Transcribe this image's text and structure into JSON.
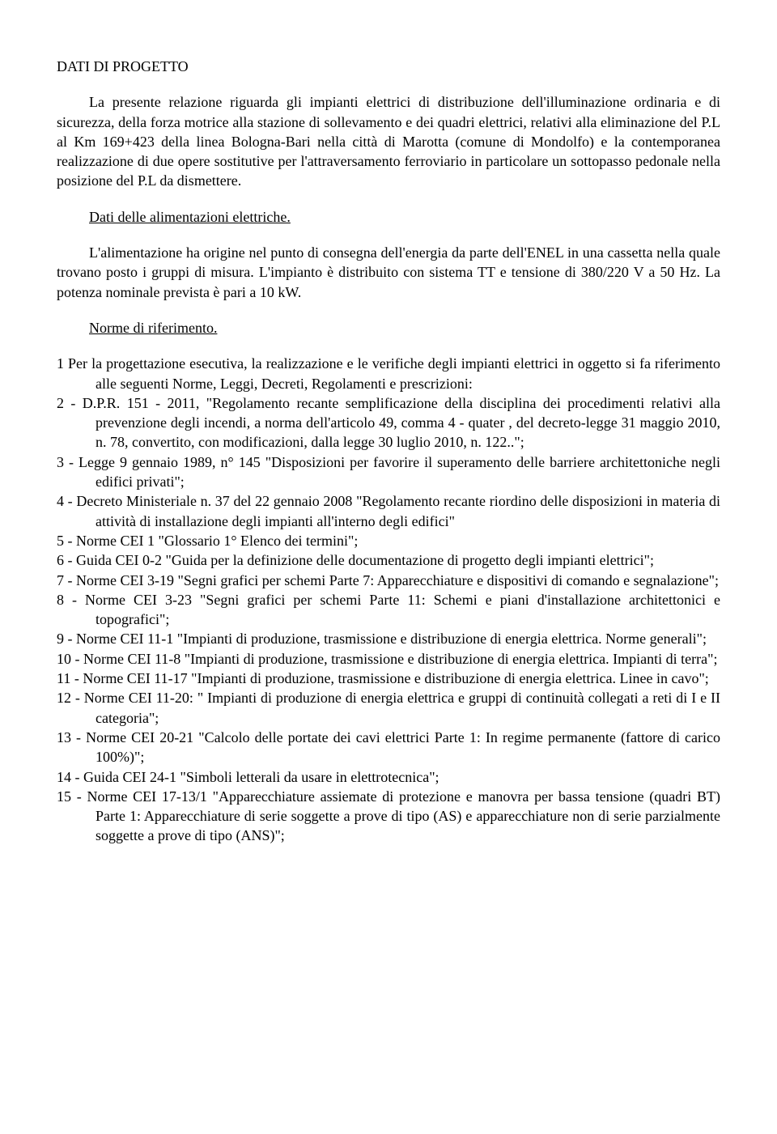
{
  "title": "DATI  DI  PROGETTO",
  "para1": "La presente relazione riguarda gli impianti elettrici di distribuzione dell'illuminazione ordinaria e di sicurezza, della forza motrice alla stazione di sollevamento e dei quadri elettrici, relativi alla eliminazione del P.L al Km 169+423 della linea Bologna-Bari nella città di Marotta (comune di Mondolfo) e la contemporanea realizzazione di due opere sostitutive per l'attraversamento ferroviario in particolare un sottopasso pedonale nella posizione del P.L da dismettere.",
  "heading1": "Dati delle alimentazioni elettriche.",
  "para2": "L'alimentazione ha origine nel punto di consegna dell'energia da parte dell'ENEL in una cassetta nella quale trovano posto i gruppi di misura.  L'impianto è distribuito con sistema TT e tensione di 380/220 V a 50 Hz. La potenza nominale prevista è pari a 10  kW.",
  "heading2": "Norme di riferimento.",
  "items": [
    "1 Per la progettazione esecutiva, la realizzazione e le verifiche degli impianti elettrici in oggetto si fa riferimento alle seguenti Norme, Leggi, Decreti, Regolamenti e prescrizioni:",
    "2 -   D.P.R. 151 - 2011, \"Regolamento recante semplificazione della disciplina dei procedimenti relativi alla prevenzione degli incendi, a norma dell'articolo 49, comma 4 - quater , del decreto-legge 31 maggio 2010, n. 78, convertito, con modificazioni, dalla legge 30 luglio 2010, n. 122..\";",
    "3 - Legge 9 gennaio 1989, n° 145 \"Disposizioni per favorire il superamento delle barriere architettoniche negli edifici privati\";",
    "4 - Decreto Ministeriale n. 37 del 22 gennaio 2008  \"Regolamento recante riordino delle disposizioni in materia di attività di installazione degli impianti all'interno degli edifici\"",
    "5 - Norme CEI 1 \"Glossario 1° Elenco dei termini\";",
    "6 - Guida CEI 0-2 \"Guida per la definizione delle documentazione di progetto degli impianti elettrici\";",
    "7 - Norme CEI 3-19 \"Segni grafici per schemi Parte 7:  Apparecchiature e dispositivi di comando e segnalazione\";",
    "8 - Norme CEI 3-23 \"Segni grafici per schemi Parte 11: Schemi e piani d'installazione architettonici e topografici\";",
    "9 - Norme CEI 11-1 \"Impianti di produzione, trasmissione e distribuzione di energia elettrica. Norme generali\";",
    "10 - Norme CEI 11-8 \"Impianti di produzione, trasmissione e distribuzione di energia elettrica. Impianti di terra\";",
    "11 - Norme CEI 11-17 \"Impianti di produzione, trasmissione e distribuzione di energia elettrica. Linee in cavo\";",
    "12 - Norme CEI 11-20: \" Impianti di produzione di energia elettrica e gruppi di continuità collegati a reti di I e II categoria\";",
    "13 - Norme CEI 20-21 \"Calcolo delle portate dei cavi elettrici Parte 1: In regime permanente (fattore di carico 100%)\";",
    "14 - Guida CEI 24-1 \"Simboli letterali da usare in elettrotecnica\";",
    "15 - Norme CEI 17-13/1 \"Apparecchiature assiemate di protezione e manovra per bassa tensione (quadri BT) Parte 1: Apparecchiature di serie soggette a prove di tipo (AS) e apparecchiature non di serie parzialmente soggette a prove di tipo (ANS)\";"
  ]
}
